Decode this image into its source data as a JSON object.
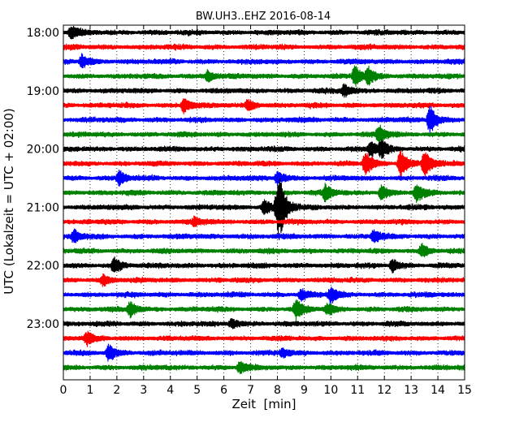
{
  "chart_data": {
    "type": "line",
    "title": "BW.UH3..EHZ 2016-08-14",
    "xlabel": "Zeit  [min]",
    "ylabel": "UTC (Lokalzeit = UTC + 02:00)",
    "xlim": [
      0,
      15
    ],
    "x_ticks": [
      "0",
      "1",
      "2",
      "3",
      "4",
      "5",
      "6",
      "7",
      "8",
      "9",
      "10",
      "11",
      "12",
      "13",
      "14",
      "15"
    ],
    "y_ticks": [
      "18:00",
      "19:00",
      "20:00",
      "21:00",
      "22:00",
      "23:00"
    ],
    "trace_minutes": 15,
    "grid": "vertical-dotted",
    "series_colors": [
      "#000000",
      "#ff0000",
      "#0000ff",
      "#008000"
    ],
    "traces": [
      {
        "start": "18:00",
        "color": "#000000",
        "events": [
          {
            "t": 0.3,
            "amp": 0.8
          }
        ]
      },
      {
        "start": "18:15",
        "color": "#ff0000",
        "events": []
      },
      {
        "start": "18:30",
        "color": "#0000ff",
        "events": [
          {
            "t": 0.7,
            "amp": 0.9
          }
        ]
      },
      {
        "start": "18:45",
        "color": "#008000",
        "events": [
          {
            "t": 5.4,
            "amp": 0.7
          },
          {
            "t": 10.9,
            "amp": 1.3
          },
          {
            "t": 11.4,
            "amp": 1.0
          }
        ]
      },
      {
        "start": "19:00",
        "color": "#000000",
        "events": [
          {
            "t": 10.5,
            "amp": 0.8
          }
        ]
      },
      {
        "start": "19:15",
        "color": "#ff0000",
        "events": [
          {
            "t": 4.5,
            "amp": 0.9
          },
          {
            "t": 6.9,
            "amp": 0.7
          }
        ]
      },
      {
        "start": "19:30",
        "color": "#0000ff",
        "events": [
          {
            "t": 13.7,
            "amp": 1.8
          }
        ]
      },
      {
        "start": "19:45",
        "color": "#008000",
        "events": [
          {
            "t": 11.8,
            "amp": 1.2
          }
        ]
      },
      {
        "start": "20:00",
        "color": "#000000",
        "events": [
          {
            "t": 11.5,
            "amp": 1.0
          },
          {
            "t": 11.9,
            "amp": 0.9
          }
        ]
      },
      {
        "start": "20:15",
        "color": "#ff0000",
        "events": [
          {
            "t": 11.3,
            "amp": 1.5
          },
          {
            "t": 12.6,
            "amp": 1.8
          },
          {
            "t": 13.5,
            "amp": 1.9
          }
        ]
      },
      {
        "start": "20:30",
        "color": "#0000ff",
        "events": [
          {
            "t": 2.1,
            "amp": 1.0
          },
          {
            "t": 8.0,
            "amp": 0.8
          }
        ]
      },
      {
        "start": "20:45",
        "color": "#008000",
        "events": [
          {
            "t": 9.8,
            "amp": 1.0
          },
          {
            "t": 11.9,
            "amp": 0.9
          },
          {
            "t": 13.2,
            "amp": 1.1
          }
        ]
      },
      {
        "start": "21:00",
        "color": "#000000",
        "events": [
          {
            "t": 7.5,
            "amp": 0.9
          },
          {
            "t": 8.0,
            "amp": 2.4
          },
          {
            "t": 8.1,
            "amp": 2.1
          }
        ]
      },
      {
        "start": "21:15",
        "color": "#ff0000",
        "events": [
          {
            "t": 4.9,
            "amp": 0.5
          }
        ]
      },
      {
        "start": "21:30",
        "color": "#0000ff",
        "events": [
          {
            "t": 0.4,
            "amp": 0.8
          },
          {
            "t": 11.6,
            "amp": 0.8
          }
        ]
      },
      {
        "start": "21:45",
        "color": "#008000",
        "events": [
          {
            "t": 13.4,
            "amp": 0.8
          }
        ]
      },
      {
        "start": "22:00",
        "color": "#000000",
        "events": [
          {
            "t": 1.9,
            "amp": 1.0
          },
          {
            "t": 12.3,
            "amp": 0.8
          }
        ]
      },
      {
        "start": "22:15",
        "color": "#ff0000",
        "events": [
          {
            "t": 1.5,
            "amp": 0.7
          }
        ]
      },
      {
        "start": "22:30",
        "color": "#0000ff",
        "events": [
          {
            "t": 8.9,
            "amp": 0.7
          },
          {
            "t": 10.0,
            "amp": 1.0
          }
        ]
      },
      {
        "start": "22:45",
        "color": "#008000",
        "events": [
          {
            "t": 2.5,
            "amp": 1.0
          },
          {
            "t": 8.7,
            "amp": 1.2
          },
          {
            "t": 9.9,
            "amp": 0.7
          }
        ]
      },
      {
        "start": "23:00",
        "color": "#000000",
        "events": [
          {
            "t": 6.3,
            "amp": 0.6
          }
        ]
      },
      {
        "start": "23:15",
        "color": "#ff0000",
        "events": [
          {
            "t": 0.9,
            "amp": 0.7
          }
        ]
      },
      {
        "start": "23:30",
        "color": "#0000ff",
        "events": [
          {
            "t": 1.7,
            "amp": 1.0
          },
          {
            "t": 8.2,
            "amp": 0.5
          }
        ]
      },
      {
        "start": "23:45",
        "color": "#008000",
        "events": [
          {
            "t": 6.6,
            "amp": 0.7
          }
        ]
      }
    ]
  }
}
